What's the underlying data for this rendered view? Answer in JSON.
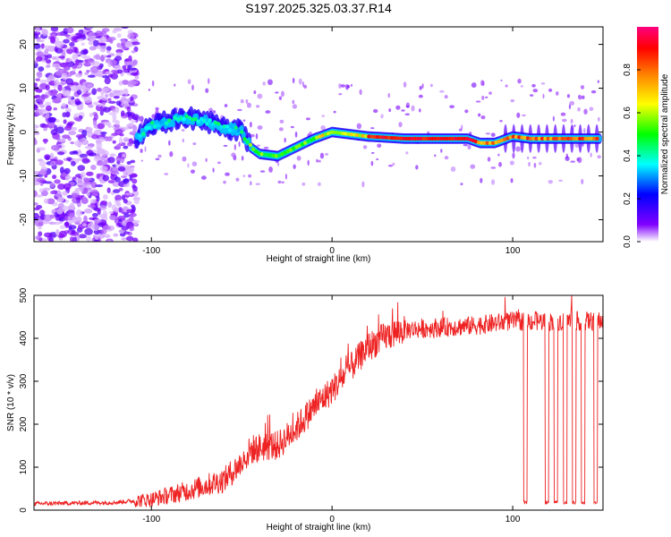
{
  "figure_title": "S197.2025.325.03.37.R14",
  "chart_data": [
    {
      "type": "heatmap",
      "title": "S197.2025.325.03.37.R14",
      "xlabel": "Height of straight line (km)",
      "ylabel": "Frequency (Hz)",
      "xlim": [
        -165,
        150
      ],
      "ylim": [
        -25,
        24
      ],
      "xticks": [
        -100,
        0,
        100
      ],
      "yticks": [
        -20,
        -10,
        0,
        10,
        20
      ],
      "colorbar": {
        "label": "Normalized spectral amplitude",
        "range": [
          0,
          1
        ],
        "ticks": [
          "0.0",
          "0.2",
          "0.4",
          "0.6",
          "0.8"
        ],
        "colors": [
          "#ffffff",
          "#8000ff",
          "#0000ff",
          "#00ffff",
          "#00ff00",
          "#ffff00",
          "#ff8000",
          "#ff0000",
          "#ff0080"
        ]
      },
      "description_series": [
        {
          "name": "noise",
          "x_range": [
            -165,
            -108
          ],
          "y_range": [
            -25,
            24
          ],
          "amplitude": 0.1
        },
        {
          "name": "signal_ridge",
          "points": [
            [
              -108,
              -1.5
            ],
            [
              -100,
              1.5
            ],
            [
              -90,
              2.5
            ],
            [
              -80,
              3.2
            ],
            [
              -70,
              2.5
            ],
            [
              -60,
              1.0
            ],
            [
              -50,
              0.2
            ],
            [
              -45,
              -3.5
            ],
            [
              -40,
              -5.0
            ],
            [
              -30,
              -5.5
            ],
            [
              -20,
              -3.5
            ],
            [
              -10,
              -1.5
            ],
            [
              0,
              0
            ],
            [
              10,
              -0.5
            ],
            [
              20,
              -1.0
            ],
            [
              40,
              -1.5
            ],
            [
              60,
              -1.5
            ],
            [
              75,
              -1.5
            ],
            [
              82,
              -2.5
            ],
            [
              90,
              -2.5
            ],
            [
              100,
              -1.0
            ],
            [
              110,
              -1.5
            ],
            [
              130,
              -1.5
            ],
            [
              148,
              -1.5
            ]
          ]
        }
      ]
    },
    {
      "type": "line",
      "xlabel": "Height of straight line (km)",
      "ylabel": "SNR (10 * v/v)",
      "xlim": [
        -165,
        150
      ],
      "ylim": [
        0,
        500
      ],
      "xticks": [
        -100,
        0,
        100
      ],
      "yticks": [
        0,
        100,
        200,
        300,
        400,
        500
      ],
      "color": "#ee2222",
      "trend_points": [
        [
          -165,
          15
        ],
        [
          -120,
          18
        ],
        [
          -100,
          25
        ],
        [
          -80,
          45
        ],
        [
          -60,
          70
        ],
        [
          -50,
          110
        ],
        [
          -45,
          140
        ],
        [
          -35,
          150
        ],
        [
          -30,
          150
        ],
        [
          -20,
          190
        ],
        [
          -10,
          240
        ],
        [
          0,
          280
        ],
        [
          10,
          330
        ],
        [
          20,
          380
        ],
        [
          30,
          405
        ],
        [
          40,
          420
        ],
        [
          60,
          425
        ],
        [
          80,
          430
        ],
        [
          100,
          440
        ],
        [
          120,
          440
        ],
        [
          150,
          440
        ]
      ],
      "dropouts": [
        {
          "x": [
            106,
            108
          ],
          "value": 18
        },
        {
          "x": [
            118,
            120
          ],
          "value": 18
        },
        {
          "x": [
            123,
            125
          ],
          "value": 18
        },
        {
          "x": [
            128,
            130
          ],
          "value": 18
        },
        {
          "x": [
            133,
            135
          ],
          "value": 18
        },
        {
          "x": [
            138,
            140
          ],
          "value": 18
        },
        {
          "x": [
            145,
            147
          ],
          "value": 18
        }
      ]
    }
  ]
}
